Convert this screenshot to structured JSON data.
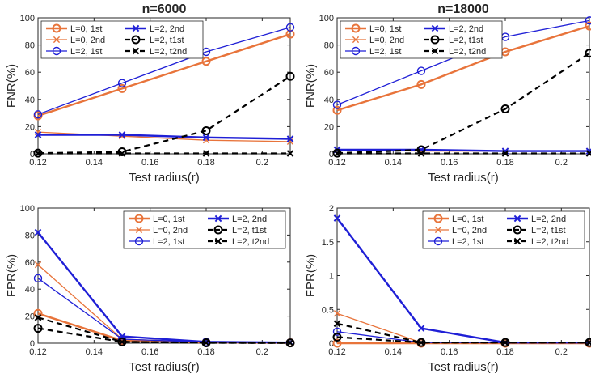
{
  "colors": {
    "orange": "#e8743b",
    "blue": "#1f1fd6",
    "black": "#000000",
    "axis": "#262626"
  },
  "chart_data": [
    {
      "type": "line",
      "title": "n=6000",
      "xlabel": "Test radius(r)",
      "ylabel": "FNR(%)",
      "xlim": [
        0.12,
        0.21
      ],
      "ylim": [
        0,
        100
      ],
      "xticks": [
        0.12,
        0.14,
        0.16,
        0.18,
        0.2
      ],
      "xtick_labels": [
        "0.12",
        "0.14",
        "0.16",
        "0.18",
        "0.2"
      ],
      "yticks": [
        0,
        20,
        40,
        60,
        80,
        100
      ],
      "ytick_labels": [
        "0",
        "20",
        "40",
        "60",
        "80",
        "100"
      ],
      "legend_position": "top-left",
      "x": [
        0.12,
        0.15,
        0.18,
        0.21
      ],
      "series": [
        {
          "name": "L=0, 1st",
          "color": "#e8743b",
          "marker": "o",
          "dash": false,
          "width": 2.4,
          "values": [
            28,
            48,
            68,
            88
          ]
        },
        {
          "name": "L=0, 2nd",
          "color": "#e8743b",
          "marker": "x",
          "dash": false,
          "width": 1.3,
          "values": [
            16,
            13,
            10,
            9
          ]
        },
        {
          "name": "L=2, 1st",
          "color": "#1f1fd6",
          "marker": "o",
          "dash": false,
          "width": 1.3,
          "values": [
            29,
            52,
            75,
            93
          ]
        },
        {
          "name": "L=2, 2nd",
          "color": "#1f1fd6",
          "marker": "x",
          "dash": false,
          "width": 2.4,
          "values": [
            14,
            14,
            12,
            11
          ]
        },
        {
          "name": "L=2, t1st",
          "color": "#000000",
          "marker": "o",
          "dash": true,
          "width": 2.2,
          "values": [
            0.5,
            1.5,
            17,
            57
          ]
        },
        {
          "name": "L=2, t2nd",
          "color": "#000000",
          "marker": "x",
          "dash": true,
          "width": 2.2,
          "values": [
            0.3,
            0.3,
            0.3,
            0.3
          ]
        }
      ]
    },
    {
      "type": "line",
      "title": "n=18000",
      "xlabel": "Test radius(r)",
      "ylabel": "FNR(%)",
      "xlim": [
        0.12,
        0.21
      ],
      "ylim": [
        0,
        100
      ],
      "xticks": [
        0.12,
        0.14,
        0.16,
        0.18,
        0.2
      ],
      "xtick_labels": [
        "0.12",
        "0.14",
        "0.16",
        "0.18",
        "0.2"
      ],
      "yticks": [
        0,
        20,
        40,
        60,
        80,
        100
      ],
      "ytick_labels": [
        "0",
        "20",
        "40",
        "60",
        "80",
        "100"
      ],
      "legend_position": "top-left",
      "x": [
        0.12,
        0.15,
        0.18,
        0.21
      ],
      "series": [
        {
          "name": "L=0, 1st",
          "color": "#e8743b",
          "marker": "o",
          "dash": false,
          "width": 2.4,
          "values": [
            32,
            51,
            75,
            94
          ]
        },
        {
          "name": "L=0, 2nd",
          "color": "#e8743b",
          "marker": "x",
          "dash": false,
          "width": 1.3,
          "values": [
            3,
            2,
            2,
            2
          ]
        },
        {
          "name": "L=2, 1st",
          "color": "#1f1fd6",
          "marker": "o",
          "dash": false,
          "width": 1.3,
          "values": [
            36,
            61,
            86,
            98
          ]
        },
        {
          "name": "L=2, 2nd",
          "color": "#1f1fd6",
          "marker": "x",
          "dash": false,
          "width": 2.4,
          "values": [
            3,
            3,
            2,
            2
          ]
        },
        {
          "name": "L=2, t1st",
          "color": "#000000",
          "marker": "o",
          "dash": true,
          "width": 2.2,
          "values": [
            0.5,
            3,
            33,
            74
          ]
        },
        {
          "name": "L=2, t2nd",
          "color": "#000000",
          "marker": "x",
          "dash": true,
          "width": 2.2,
          "values": [
            0.3,
            0.3,
            0.3,
            0.3
          ]
        }
      ]
    },
    {
      "type": "line",
      "title": "",
      "xlabel": "Test radius(r)",
      "ylabel": "FPR(%)",
      "xlim": [
        0.12,
        0.21
      ],
      "ylim": [
        0,
        100
      ],
      "xticks": [
        0.12,
        0.14,
        0.16,
        0.18,
        0.2
      ],
      "xtick_labels": [
        "0.12",
        "0.14",
        "0.16",
        "0.18",
        "0.2"
      ],
      "yticks": [
        0,
        20,
        40,
        60,
        80,
        100
      ],
      "ytick_labels": [
        "0",
        "20",
        "40",
        "60",
        "80",
        "100"
      ],
      "legend_position": "top-right",
      "x": [
        0.12,
        0.15,
        0.18,
        0.21
      ],
      "series": [
        {
          "name": "L=0, 1st",
          "color": "#e8743b",
          "marker": "o",
          "dash": false,
          "width": 2.4,
          "values": [
            22,
            2,
            0.5,
            0.3
          ]
        },
        {
          "name": "L=0, 2nd",
          "color": "#e8743b",
          "marker": "x",
          "dash": false,
          "width": 1.3,
          "values": [
            58,
            3,
            0.8,
            0.3
          ]
        },
        {
          "name": "L=2, 1st",
          "color": "#1f1fd6",
          "marker": "o",
          "dash": false,
          "width": 1.3,
          "values": [
            48,
            3,
            0.8,
            0.3
          ]
        },
        {
          "name": "L=2, 2nd",
          "color": "#1f1fd6",
          "marker": "x",
          "dash": false,
          "width": 2.4,
          "values": [
            82,
            5,
            1,
            0.5
          ]
        },
        {
          "name": "L=2, t1st",
          "color": "#000000",
          "marker": "o",
          "dash": true,
          "width": 2.2,
          "values": [
            11,
            1,
            0.3,
            0.2
          ]
        },
        {
          "name": "L=2, t2nd",
          "color": "#000000",
          "marker": "x",
          "dash": true,
          "width": 2.2,
          "values": [
            19,
            1,
            0.3,
            0.2
          ]
        }
      ]
    },
    {
      "type": "line",
      "title": "",
      "xlabel": "Test radius(r)",
      "ylabel": "FPR(%)",
      "xlim": [
        0.12,
        0.21
      ],
      "ylim": [
        0,
        2
      ],
      "xticks": [
        0.12,
        0.14,
        0.16,
        0.18,
        0.2
      ],
      "xtick_labels": [
        "0.12",
        "0.14",
        "0.16",
        "0.18",
        "0.2"
      ],
      "yticks": [
        0,
        0.5,
        1,
        1.5,
        2
      ],
      "ytick_labels": [
        "0",
        "0.5",
        "1",
        "1.5",
        "2"
      ],
      "legend_position": "top-right",
      "x": [
        0.12,
        0.15,
        0.18,
        0.21
      ],
      "series": [
        {
          "name": "L=0, 1st",
          "color": "#e8743b",
          "marker": "o",
          "dash": false,
          "width": 2.4,
          "values": [
            0,
            0,
            0,
            0
          ]
        },
        {
          "name": "L=0, 2nd",
          "color": "#e8743b",
          "marker": "x",
          "dash": false,
          "width": 1.3,
          "values": [
            0.44,
            0.01,
            0.01,
            0.01
          ]
        },
        {
          "name": "L=2, 1st",
          "color": "#1f1fd6",
          "marker": "o",
          "dash": false,
          "width": 1.3,
          "values": [
            0.17,
            0.01,
            0.01,
            0.01
          ]
        },
        {
          "name": "L=2, 2nd",
          "color": "#1f1fd6",
          "marker": "x",
          "dash": false,
          "width": 2.4,
          "values": [
            1.85,
            0.22,
            0.01,
            0.01
          ]
        },
        {
          "name": "L=2, t1st",
          "color": "#000000",
          "marker": "o",
          "dash": true,
          "width": 2.2,
          "values": [
            0.09,
            0.01,
            0.01,
            0.01
          ]
        },
        {
          "name": "L=2, t2nd",
          "color": "#000000",
          "marker": "x",
          "dash": true,
          "width": 2.2,
          "values": [
            0.29,
            0.01,
            0.01,
            0.01
          ]
        }
      ]
    }
  ]
}
